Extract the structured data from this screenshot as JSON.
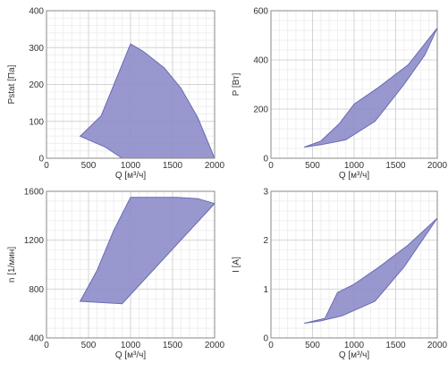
{
  "colors": {
    "area_fill": "#8a8ac8",
    "area_stroke": "#6a6ab4",
    "grid": "#d4d4d4"
  },
  "chart_data": [
    {
      "type": "area",
      "xlabel": "Q [м³/ч]",
      "ylabel": "Pstat [Па]",
      "xlim": [
        0,
        2000
      ],
      "ylim": [
        0,
        400
      ],
      "xticks": [
        0,
        500,
        1000,
        1500,
        2000
      ],
      "yticks": [
        0,
        100,
        200,
        300,
        400
      ],
      "grid": true,
      "region": [
        [
          400,
          60
        ],
        [
          650,
          115
        ],
        [
          1000,
          310
        ],
        [
          1150,
          290
        ],
        [
          1400,
          245
        ],
        [
          1600,
          190
        ],
        [
          1800,
          110
        ],
        [
          2000,
          0
        ],
        [
          900,
          0
        ],
        [
          700,
          30
        ]
      ]
    },
    {
      "type": "area",
      "xlabel": "Q [м³/ч]",
      "ylabel": "P [Вт]",
      "xlim": [
        0,
        2000
      ],
      "ylim": [
        0,
        600
      ],
      "xticks": [
        0,
        500,
        1000,
        1500,
        2000
      ],
      "yticks": [
        0,
        200,
        400,
        600
      ],
      "grid": true,
      "region": [
        [
          400,
          45
        ],
        [
          600,
          70
        ],
        [
          820,
          140
        ],
        [
          1000,
          220
        ],
        [
          1300,
          290
        ],
        [
          1650,
          380
        ],
        [
          2000,
          530
        ],
        [
          1850,
          420
        ],
        [
          1600,
          300
        ],
        [
          1250,
          150
        ],
        [
          900,
          75
        ],
        [
          600,
          55
        ]
      ]
    },
    {
      "type": "area",
      "xlabel": "Q [м³/ч]",
      "ylabel": "n [1/мин]",
      "xlim": [
        0,
        2000
      ],
      "ylim": [
        400,
        1600
      ],
      "xticks": [
        0,
        500,
        1000,
        1500,
        2000
      ],
      "yticks": [
        400,
        800,
        1200,
        1600
      ],
      "grid": true,
      "region": [
        [
          400,
          700
        ],
        [
          600,
          950
        ],
        [
          800,
          1280
        ],
        [
          1000,
          1550
        ],
        [
          1300,
          1550
        ],
        [
          1550,
          1550
        ],
        [
          1800,
          1540
        ],
        [
          2000,
          1500
        ],
        [
          900,
          680
        ]
      ]
    },
    {
      "type": "area",
      "xlabel": "Q [м³/ч]",
      "ylabel": "I [А]",
      "xlim": [
        0,
        2000
      ],
      "ylim": [
        0,
        3
      ],
      "xticks": [
        0,
        500,
        1000,
        1500,
        2000
      ],
      "yticks": [
        0,
        1,
        2,
        3
      ],
      "grid": true,
      "region": [
        [
          400,
          0.3
        ],
        [
          650,
          0.4
        ],
        [
          800,
          0.93
        ],
        [
          1000,
          1.1
        ],
        [
          1300,
          1.45
        ],
        [
          1650,
          1.9
        ],
        [
          2000,
          2.45
        ],
        [
          1600,
          1.45
        ],
        [
          1250,
          0.75
        ],
        [
          850,
          0.45
        ],
        [
          600,
          0.35
        ]
      ]
    }
  ]
}
